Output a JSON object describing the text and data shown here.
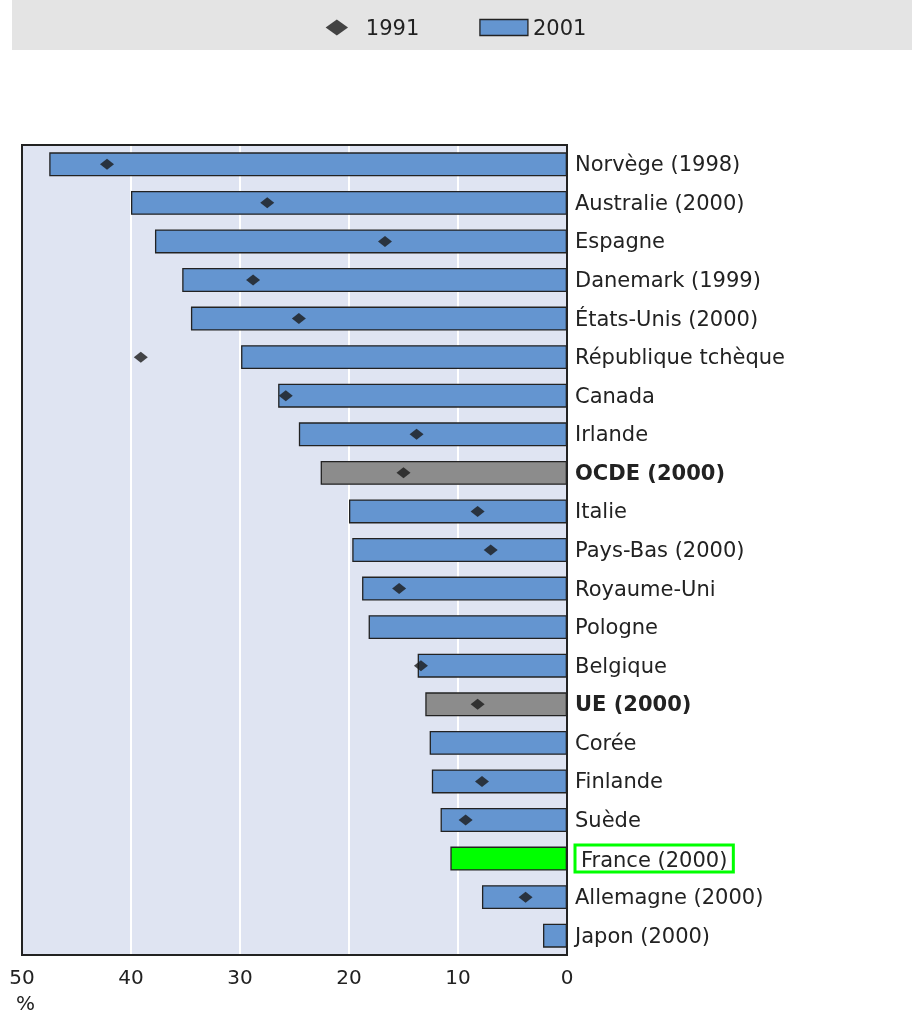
{
  "chart_data": {
    "type": "bar",
    "orientation": "horizontal",
    "xlabel": "%",
    "categories": [
      "Norvège (1998)",
      "Australie (2000)",
      "Espagne",
      "Danemark (1999)",
      "États-Unis (2000)",
      "République tchèque",
      "Canada",
      "Irlande",
      "OCDE (2000)",
      "Italie",
      "Pays-Bas (2000)",
      "Royaume-Uni",
      "Pologne",
      "Belgique",
      "UE (2000)",
      "Corée",
      "Finlande",
      "Suède",
      "France (2000)",
      "Allemagne (2000)",
      "Japon (2000)"
    ],
    "series": [
      {
        "name": "1991",
        "type": "scatter",
        "color": "#1a1a1a",
        "values": [
          42.2,
          27.5,
          16.7,
          28.8,
          24.6,
          39.1,
          25.8,
          13.8,
          15.0,
          8.2,
          7.0,
          15.4,
          null,
          13.4,
          8.2,
          null,
          7.8,
          9.3,
          null,
          3.8,
          null
        ]
      },
      {
        "name": "2001",
        "color": "#6495d0",
        "colors": [
          "#6495d0",
          "#6495d0",
          "#6495d0",
          "#6495d0",
          "#6495d0",
          "#6495d0",
          "#6495d0",
          "#6495d0",
          "#8c8c8c",
          "#6495d0",
          "#6495d0",
          "#6495d0",
          "#6495d0",
          "#6495d0",
          "#8c8c8c",
          "#6495d0",
          "#6495d0",
          "#6495d0",
          "#00ff00",
          "#6495d0",
          "#6495d0"
        ],
        "values": [
          47.5,
          40.0,
          37.8,
          35.3,
          34.5,
          29.9,
          26.5,
          24.6,
          22.6,
          20.0,
          19.7,
          18.8,
          18.2,
          13.7,
          13.0,
          12.6,
          12.4,
          11.6,
          10.7,
          7.8,
          2.2
        ]
      }
    ],
    "xlim": [
      50,
      0
    ],
    "xticks": [
      0,
      10,
      20,
      30,
      40,
      50
    ],
    "grid": "x",
    "legend": "top",
    "marker": "diamond"
  }
}
